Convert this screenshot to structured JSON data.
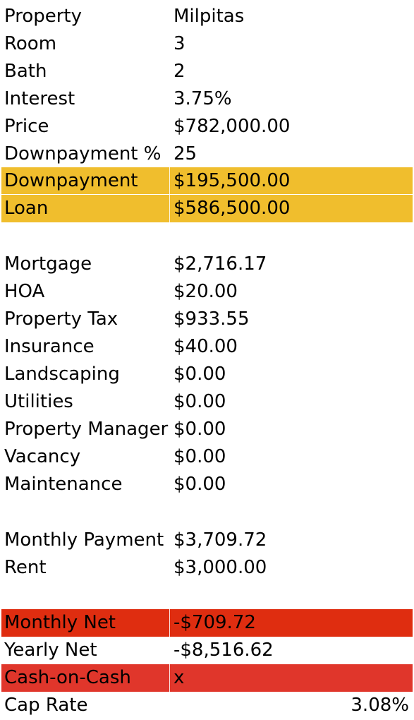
{
  "colors": {
    "highlight_yellow": "#f0be2d",
    "highlight_red_dark": "#df2d10",
    "highlight_red": "#e0362b"
  },
  "rows": {
    "property": {
      "label": "Property",
      "value": "Milpitas"
    },
    "room": {
      "label": "Room",
      "value": "3"
    },
    "bath": {
      "label": "Bath",
      "value": "2"
    },
    "interest": {
      "label": "Interest",
      "value": "3.75%"
    },
    "price": {
      "label": "Price",
      "value": "$782,000.00"
    },
    "downpayment_pct": {
      "label": "Downpayment %",
      "value": "25"
    },
    "downpayment": {
      "label": "Downpayment",
      "value": "$195,500.00"
    },
    "loan": {
      "label": "Loan",
      "value": "$586,500.00"
    },
    "mortgage": {
      "label": "Mortgage",
      "value": "$2,716.17"
    },
    "hoa": {
      "label": "HOA",
      "value": "$20.00"
    },
    "property_tax": {
      "label": "Property Tax",
      "value": "$933.55"
    },
    "insurance": {
      "label": "Insurance",
      "value": "$40.00"
    },
    "landscaping": {
      "label": "Landscaping",
      "value": "$0.00"
    },
    "utilities": {
      "label": "Utilities",
      "value": "$0.00"
    },
    "property_manager": {
      "label": "Property Manager",
      "value": "$0.00"
    },
    "vacancy": {
      "label": "Vacancy",
      "value": "$0.00"
    },
    "maintenance": {
      "label": "Maintenance",
      "value": "$0.00"
    },
    "monthly_payment": {
      "label": "Monthly Payment",
      "value": "$3,709.72"
    },
    "rent": {
      "label": "Rent",
      "value": "$3,000.00"
    },
    "monthly_net": {
      "label": "Monthly Net",
      "value": "-$709.72"
    },
    "yearly_net": {
      "label": "Yearly Net",
      "value": "-$8,516.62"
    },
    "cash_on_cash": {
      "label": "Cash-on-Cash",
      "value": "x"
    },
    "cap_rate": {
      "label": "Cap Rate",
      "value": "3.08%"
    }
  }
}
